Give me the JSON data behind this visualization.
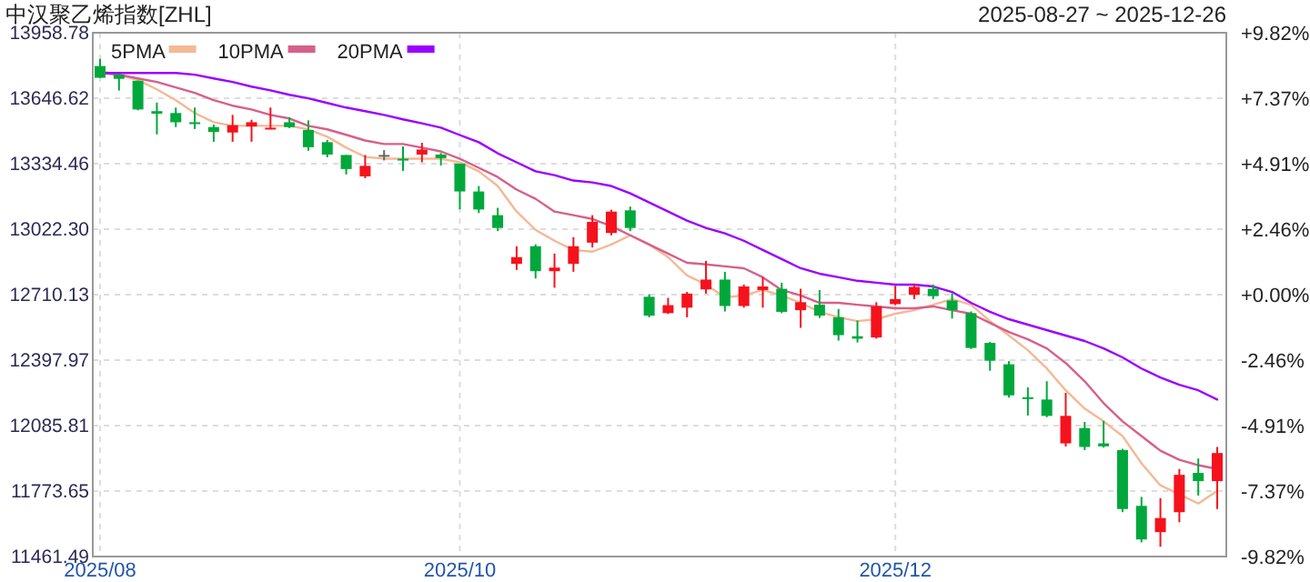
{
  "chart_data": {
    "type": "candlestick",
    "title": "中汉聚乙烯指数[ZHL]",
    "subtitle": "2025-08-27 ~ 2025-12-26",
    "categories": [
      "2025/08",
      null,
      null,
      null,
      null,
      null,
      null,
      null,
      null,
      null,
      null,
      null,
      null,
      null,
      null,
      null,
      null,
      null,
      null,
      "2025/10",
      null,
      null,
      null,
      null,
      null,
      null,
      null,
      null,
      null,
      null,
      null,
      null,
      null,
      null,
      null,
      null,
      null,
      null,
      null,
      null,
      null,
      null,
      "2025/12",
      null,
      null,
      null,
      null,
      null,
      null,
      null,
      null,
      null,
      null,
      null,
      null,
      null,
      null,
      null,
      null,
      null
    ],
    "ohlc": [
      [
        13800,
        13834,
        13744,
        13744
      ],
      [
        13759,
        13759,
        13683,
        13739
      ],
      [
        13730,
        13730,
        13589,
        13593
      ],
      [
        13585,
        13626,
        13474,
        13573
      ],
      [
        13576,
        13602,
        13509,
        13532
      ],
      [
        13532,
        13602,
        13500,
        13526
      ],
      [
        13509,
        13521,
        13439,
        13486
      ],
      [
        13483,
        13567,
        13439,
        13518
      ],
      [
        13512,
        13544,
        13439,
        13532
      ],
      [
        13498,
        13602,
        13498,
        13506
      ],
      [
        13532,
        13556,
        13504,
        13509
      ],
      [
        13495,
        13541,
        13396,
        13413
      ],
      [
        13437,
        13448,
        13365,
        13378
      ],
      [
        13376,
        13376,
        13283,
        13309
      ],
      [
        13274,
        13376,
        13265,
        13324
      ],
      [
        13376,
        13399,
        13350,
        13376
      ],
      [
        13358,
        13417,
        13300,
        13356
      ],
      [
        13378,
        13434,
        13341,
        13402
      ],
      [
        13378,
        13385,
        13326,
        13361
      ],
      [
        13335,
        13335,
        13117,
        13202
      ],
      [
        13202,
        13228,
        13099,
        13116
      ],
      [
        13089,
        13124,
        13013,
        13028
      ],
      [
        12857,
        12941,
        12828,
        12889
      ],
      [
        12941,
        12950,
        12787,
        12822
      ],
      [
        12822,
        12906,
        12743,
        12839
      ],
      [
        12857,
        12984,
        12819,
        12941
      ],
      [
        12958,
        13089,
        12935,
        13057
      ],
      [
        13004,
        13115,
        12993,
        13106
      ],
      [
        13112,
        13130,
        13013,
        13028
      ],
      [
        12700,
        12712,
        12602,
        12610
      ],
      [
        12622,
        12695,
        12618,
        12660
      ],
      [
        12648,
        12723,
        12602,
        12715
      ],
      [
        12735,
        12871,
        12715,
        12782
      ],
      [
        12782,
        12819,
        12630,
        12656
      ],
      [
        12656,
        12758,
        12648,
        12749
      ],
      [
        12732,
        12793,
        12648,
        12749
      ],
      [
        12738,
        12767,
        12622,
        12628
      ],
      [
        12636,
        12738,
        12552,
        12674
      ],
      [
        12662,
        12732,
        12599,
        12610
      ],
      [
        12602,
        12642,
        12491,
        12517
      ],
      [
        12512,
        12587,
        12482,
        12500
      ],
      [
        12506,
        12674,
        12500,
        12654
      ],
      [
        12665,
        12752,
        12660,
        12689
      ],
      [
        12709,
        12761,
        12689,
        12747
      ],
      [
        12738,
        12758,
        12689,
        12703
      ],
      [
        12682,
        12717,
        12596,
        12636
      ],
      [
        12622,
        12630,
        12451,
        12456
      ],
      [
        12480,
        12485,
        12347,
        12395
      ],
      [
        12378,
        12393,
        12219,
        12230
      ],
      [
        12221,
        12268,
        12134,
        12216
      ],
      [
        12210,
        12297,
        12126,
        12132
      ],
      [
        12001,
        12242,
        11986,
        12132
      ],
      [
        12074,
        12103,
        11969,
        11984
      ],
      [
        12001,
        12108,
        11981,
        11987
      ],
      [
        11969,
        11975,
        11673,
        11688
      ],
      [
        11703,
        11746,
        11529,
        11543
      ],
      [
        11578,
        11740,
        11508,
        11645
      ],
      [
        11673,
        11879,
        11625,
        11851
      ],
      [
        11860,
        11929,
        11752,
        11821
      ],
      [
        11821,
        11984,
        11688,
        11955
      ]
    ],
    "colors": [
      "#00a83c",
      "#00a83c",
      "#00a83c",
      "#00a83c",
      "#00a83c",
      "#00a83c",
      "#00a83c",
      "#f5121c",
      "#f5121c",
      "#f5121c",
      "#00a83c",
      "#00a83c",
      "#00a83c",
      "#00a83c",
      "#f5121c",
      "#666666",
      "#00a83c",
      "#f5121c",
      "#00a83c",
      "#00a83c",
      "#00a83c",
      "#00a83c",
      "#f5121c",
      "#00a83c",
      "#f5121c",
      "#f5121c",
      "#f5121c",
      "#f5121c",
      "#00a83c",
      "#00a83c",
      "#f5121c",
      "#f5121c",
      "#f5121c",
      "#00a83c",
      "#f5121c",
      "#f5121c",
      "#00a83c",
      "#f5121c",
      "#00a83c",
      "#00a83c",
      "#00a83c",
      "#f5121c",
      "#f5121c",
      "#f5121c",
      "#00a83c",
      "#00a83c",
      "#00a83c",
      "#00a83c",
      "#00a83c",
      "#00a83c",
      "#00a83c",
      "#f5121c",
      "#00a83c",
      "#00a83c",
      "#00a83c",
      "#00a83c",
      "#f5121c",
      "#f5121c",
      "#00a83c",
      "#f5121c"
    ],
    "series": [
      {
        "name": "5PMA",
        "type": "line",
        "color": "#f5b895",
        "values": [
          13776,
          13759,
          13733,
          13689,
          13637,
          13576,
          13532,
          13515,
          13515,
          13515,
          13515,
          13498,
          13463,
          13411,
          13367,
          13358,
          13358,
          13358,
          13358,
          13341,
          13298,
          13228,
          13106,
          13019,
          12967,
          12923,
          12915,
          12949,
          12993,
          12949,
          12889,
          12802,
          12758,
          12697,
          12706,
          12732,
          12706,
          12671,
          12628,
          12602,
          12584,
          12593,
          12619,
          12636,
          12662,
          12689,
          12662,
          12584,
          12515,
          12445,
          12358,
          12254,
          12167,
          12106,
          12036,
          11906,
          11801,
          11758,
          11714,
          11775
        ]
      },
      {
        "name": "10PMA",
        "type": "line",
        "color": "#d6608a",
        "values": [
          13767,
          13759,
          13741,
          13724,
          13698,
          13672,
          13637,
          13611,
          13593,
          13567,
          13550,
          13515,
          13498,
          13472,
          13445,
          13428,
          13428,
          13411,
          13393,
          13358,
          13315,
          13271,
          13211,
          13167,
          13106,
          13089,
          13071,
          13037,
          12993,
          12949,
          12906,
          12862,
          12854,
          12845,
          12836,
          12793,
          12732,
          12706,
          12671,
          12671,
          12662,
          12654,
          12645,
          12645,
          12654,
          12636,
          12619,
          12575,
          12532,
          12497,
          12454,
          12384,
          12297,
          12193,
          12106,
          12036,
          11966,
          11923,
          11897,
          11879
        ]
      },
      {
        "name": "20PMA",
        "type": "line",
        "color": "#9b00ff",
        "values": [
          13767,
          13767,
          13767,
          13767,
          13767,
          13759,
          13741,
          13724,
          13702,
          13684,
          13663,
          13646,
          13624,
          13602,
          13585,
          13567,
          13546,
          13527,
          13506,
          13471,
          13437,
          13384,
          13341,
          13298,
          13280,
          13254,
          13245,
          13228,
          13193,
          13150,
          13106,
          13063,
          13028,
          13002,
          12967,
          12923,
          12880,
          12836,
          12810,
          12793,
          12776,
          12767,
          12758,
          12758,
          12749,
          12723,
          12671,
          12628,
          12593,
          12567,
          12541,
          12515,
          12489,
          12454,
          12411,
          12358,
          12315,
          12280,
          12254,
          12210
        ]
      }
    ],
    "ylim": [
      11461.49,
      13958.78
    ],
    "yticks": [
      11461.49,
      11773.65,
      12085.81,
      12397.97,
      12710.13,
      {
        "value": 13022.3,
        "label": "13022.30"
      },
      13334.46,
      13646.62,
      13958.78
    ],
    "y2lim": [
      -9.82,
      9.82
    ],
    "y2ticks": [
      {
        "value": -9.82,
        "label": "-9.82%"
      },
      {
        "value": -7.37,
        "label": "-7.37%"
      },
      {
        "value": -4.91,
        "label": "-4.91%"
      },
      {
        "value": -2.46,
        "label": "-2.46%"
      },
      {
        "value": 0,
        "label": "+0.00%"
      },
      {
        "value": 2.46,
        "label": "+2.46%"
      },
      {
        "value": 4.91,
        "label": "+4.91%"
      },
      {
        "value": 7.37,
        "label": "+7.37%"
      },
      {
        "value": 9.82,
        "label": "+9.82%"
      }
    ],
    "grid": true,
    "legend": "top left"
  }
}
